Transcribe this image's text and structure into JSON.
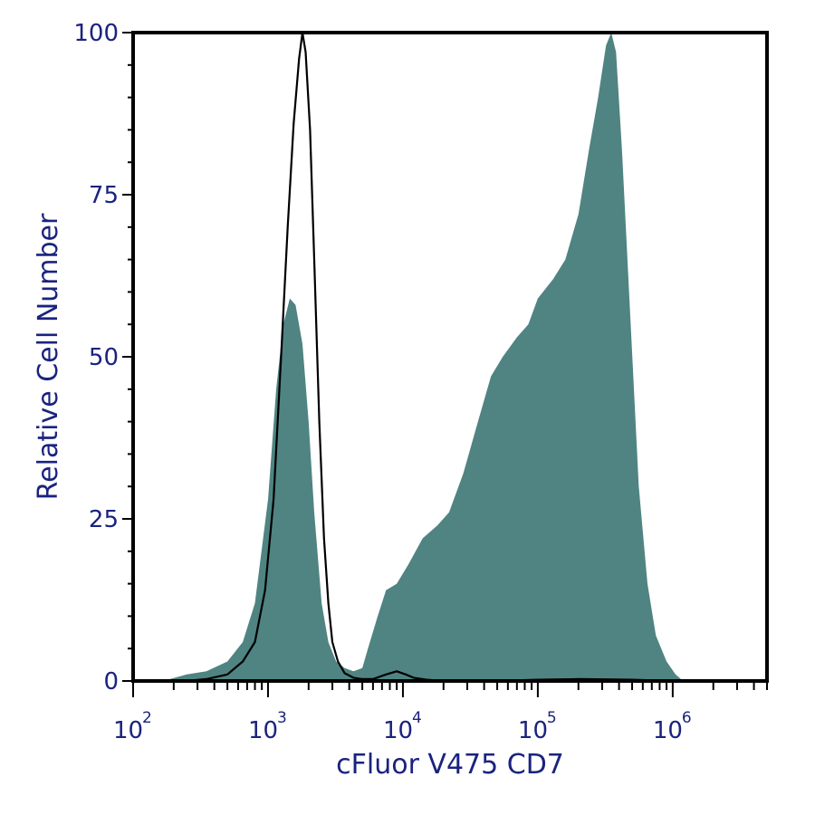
{
  "chart_data": {
    "type": "area",
    "xlabel": "cFluor V475 CD7",
    "ylabel": "Relative Cell Number",
    "x_scale": "log",
    "xlim": [
      100,
      5000000
    ],
    "ylim": [
      0,
      100
    ],
    "grid": false,
    "x_major_ticks": [
      {
        "value": 100,
        "base": "10",
        "exp": "2"
      },
      {
        "value": 1000,
        "base": "10",
        "exp": "3"
      },
      {
        "value": 10000,
        "base": "10",
        "exp": "4"
      },
      {
        "value": 100000,
        "base": "10",
        "exp": "5"
      },
      {
        "value": 1000000,
        "base": "10",
        "exp": "6"
      }
    ],
    "y_ticks": [
      {
        "value": 0,
        "label": "0"
      },
      {
        "value": 25,
        "label": "25"
      },
      {
        "value": 50,
        "label": "50"
      },
      {
        "value": 75,
        "label": "75"
      },
      {
        "value": 100,
        "label": "100"
      }
    ],
    "series": [
      {
        "style": "filled",
        "color": "#4f8482",
        "x": [
          180,
          250,
          350,
          500,
          650,
          800,
          1000,
          1150,
          1300,
          1450,
          1600,
          1800,
          2000,
          2200,
          2500,
          2800,
          3200,
          3700,
          4300,
          5000,
          5500,
          6500,
          7500,
          9000,
          11000,
          14000,
          18000,
          22000,
          28000,
          36000,
          45000,
          55000,
          70000,
          85000,
          100000,
          130000,
          160000,
          200000,
          240000,
          280000,
          320000,
          350000,
          380000,
          420000,
          480000,
          560000,
          650000,
          750000,
          900000,
          1050000,
          1150000,
          1500000
        ],
        "y": [
          0.2,
          1,
          1.5,
          3,
          6,
          12,
          28,
          45,
          55,
          59,
          58,
          52,
          40,
          26,
          12,
          6,
          3,
          2,
          1.5,
          2,
          5,
          10,
          14,
          15,
          18,
          22,
          24,
          26,
          32,
          40,
          47,
          50,
          53,
          55,
          59,
          62,
          65,
          72,
          82,
          90,
          98,
          100,
          97,
          82,
          58,
          30,
          15,
          7,
          3,
          1,
          0.3,
          0
        ]
      },
      {
        "style": "outline",
        "color": "#000000",
        "x": [
          250,
          350,
          500,
          650,
          800,
          950,
          1100,
          1250,
          1400,
          1550,
          1700,
          1800,
          1900,
          2050,
          2200,
          2400,
          2600,
          2800,
          3000,
          3300,
          3700,
          4300,
          5000,
          6000,
          7500,
          9000,
          10500,
          12000,
          15000,
          20000,
          50000,
          100000,
          200000,
          500000,
          1000000
        ],
        "y": [
          0,
          0.3,
          1,
          3,
          6,
          14,
          28,
          50,
          70,
          86,
          96,
          100,
          97,
          85,
          65,
          40,
          22,
          12,
          6,
          3,
          1.2,
          0.5,
          0.3,
          0.3,
          1,
          1.5,
          1,
          0.5,
          0.2,
          0,
          0,
          0.2,
          0.3,
          0.2,
          0
        ]
      }
    ]
  }
}
